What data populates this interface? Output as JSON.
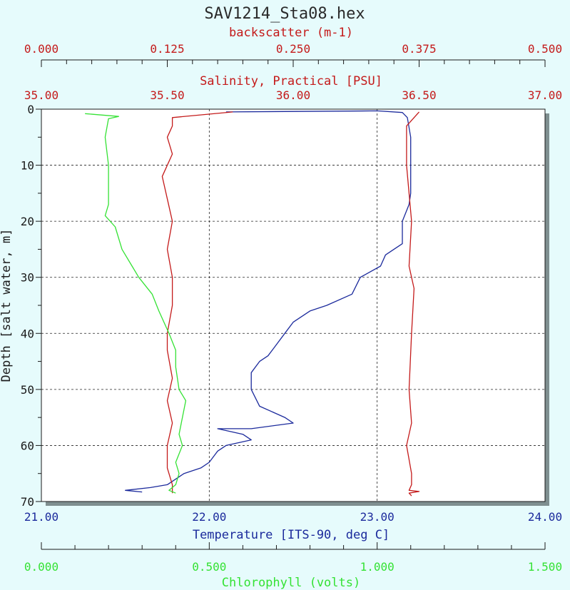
{
  "colors": {
    "background": "#e6fbfc",
    "backscatter": "#c41a1a",
    "salinity": "#c41a1a",
    "temperature": "#1b2a9c",
    "chlorophyll": "#34e234",
    "axis": "#1a1a1a"
  },
  "chart_data": {
    "type": "line",
    "title": "SAV1214_Sta08.hex",
    "grid": true,
    "legend": "none",
    "y_axis": {
      "label": "Depth [salt water, m]",
      "range": [
        0,
        70
      ],
      "inverted": true,
      "ticks": [
        "0",
        "10",
        "20",
        "30",
        "40",
        "50",
        "60",
        "70"
      ]
    },
    "x_axes": {
      "backscatter": {
        "label": "backscatter (m-1)",
        "range": [
          0,
          0.5
        ],
        "ticks": [
          "0.000",
          "0.125",
          "0.250",
          "0.375",
          "0.500"
        ]
      },
      "salinity": {
        "label": "Salinity, Practical [PSU]",
        "range": [
          35,
          37
        ],
        "ticks": [
          "35.00",
          "35.50",
          "36.00",
          "36.50",
          "37.00"
        ]
      },
      "temperature": {
        "label": "Temperature [ITS-90, deg C]",
        "range": [
          21,
          24
        ],
        "ticks": [
          "21.00",
          "22.00",
          "23.00",
          "24.00"
        ]
      },
      "chlorophyll": {
        "label": "Chlorophyll (volts)",
        "range": [
          0,
          1.5
        ],
        "ticks": [
          "0.000",
          "0.500",
          "1.000",
          "1.500"
        ]
      }
    },
    "series": [
      {
        "key": "temperature",
        "points": [
          [
            22.1,
            0.5
          ],
          [
            23.0,
            0.3
          ],
          [
            23.15,
            0.6
          ],
          [
            23.18,
            1.5
          ],
          [
            23.2,
            5
          ],
          [
            23.2,
            10
          ],
          [
            23.2,
            15
          ],
          [
            23.19,
            17
          ],
          [
            23.15,
            20
          ],
          [
            23.15,
            24
          ],
          [
            23.05,
            26
          ],
          [
            23.02,
            28
          ],
          [
            22.9,
            30
          ],
          [
            22.85,
            33
          ],
          [
            22.7,
            35
          ],
          [
            22.6,
            36
          ],
          [
            22.5,
            38
          ],
          [
            22.45,
            40
          ],
          [
            22.4,
            42
          ],
          [
            22.35,
            44
          ],
          [
            22.3,
            45
          ],
          [
            22.25,
            47
          ],
          [
            22.25,
            50
          ],
          [
            22.3,
            53
          ],
          [
            22.45,
            55
          ],
          [
            22.5,
            56
          ],
          [
            22.25,
            57
          ],
          [
            22.05,
            57
          ],
          [
            22.2,
            58
          ],
          [
            22.25,
            59
          ],
          [
            22.1,
            60
          ],
          [
            22.05,
            61
          ],
          [
            22.0,
            63
          ],
          [
            21.95,
            64
          ],
          [
            21.85,
            65
          ],
          [
            21.75,
            67
          ],
          [
            21.65,
            67.5
          ],
          [
            21.5,
            68
          ],
          [
            21.6,
            68.3
          ]
        ]
      },
      {
        "key": "salinity",
        "points": [
          [
            36.5,
            0.5
          ],
          [
            36.45,
            3
          ],
          [
            36.45,
            10
          ],
          [
            36.47,
            20
          ],
          [
            36.46,
            28
          ],
          [
            36.48,
            32
          ],
          [
            36.47,
            40
          ],
          [
            36.46,
            50
          ],
          [
            36.47,
            56
          ],
          [
            36.45,
            60
          ],
          [
            36.47,
            65
          ],
          [
            36.47,
            67
          ],
          [
            36.46,
            68
          ],
          [
            36.5,
            68.2
          ],
          [
            36.46,
            68.5
          ],
          [
            36.47,
            69
          ]
        ]
      },
      {
        "key": "backscatter",
        "points": [
          [
            0.19,
            0.5
          ],
          [
            0.13,
            1.5
          ],
          [
            0.13,
            3
          ],
          [
            0.125,
            5
          ],
          [
            0.13,
            8
          ],
          [
            0.12,
            12
          ],
          [
            0.125,
            16
          ],
          [
            0.13,
            20
          ],
          [
            0.125,
            25
          ],
          [
            0.13,
            30
          ],
          [
            0.13,
            35
          ],
          [
            0.125,
            40
          ],
          [
            0.125,
            43
          ],
          [
            0.13,
            48
          ],
          [
            0.125,
            52
          ],
          [
            0.13,
            56
          ],
          [
            0.125,
            60
          ],
          [
            0.125,
            64
          ],
          [
            0.13,
            67
          ],
          [
            0.13,
            68
          ],
          [
            0.13,
            68.5
          ]
        ]
      },
      {
        "key": "chlorophyll",
        "points": [
          [
            0.13,
            0.8
          ],
          [
            0.23,
            1.3
          ],
          [
            0.2,
            1.7
          ],
          [
            0.19,
            5
          ],
          [
            0.2,
            10
          ],
          [
            0.2,
            15
          ],
          [
            0.2,
            17
          ],
          [
            0.19,
            19
          ],
          [
            0.22,
            21
          ],
          [
            0.24,
            25
          ],
          [
            0.27,
            28
          ],
          [
            0.29,
            30
          ],
          [
            0.33,
            33
          ],
          [
            0.35,
            36
          ],
          [
            0.38,
            40
          ],
          [
            0.4,
            43
          ],
          [
            0.4,
            46
          ],
          [
            0.41,
            50
          ],
          [
            0.43,
            52
          ],
          [
            0.42,
            55
          ],
          [
            0.41,
            58
          ],
          [
            0.42,
            60
          ],
          [
            0.4,
            63
          ],
          [
            0.41,
            65
          ],
          [
            0.4,
            67
          ],
          [
            0.38,
            68
          ],
          [
            0.4,
            68.5
          ]
        ]
      }
    ]
  }
}
